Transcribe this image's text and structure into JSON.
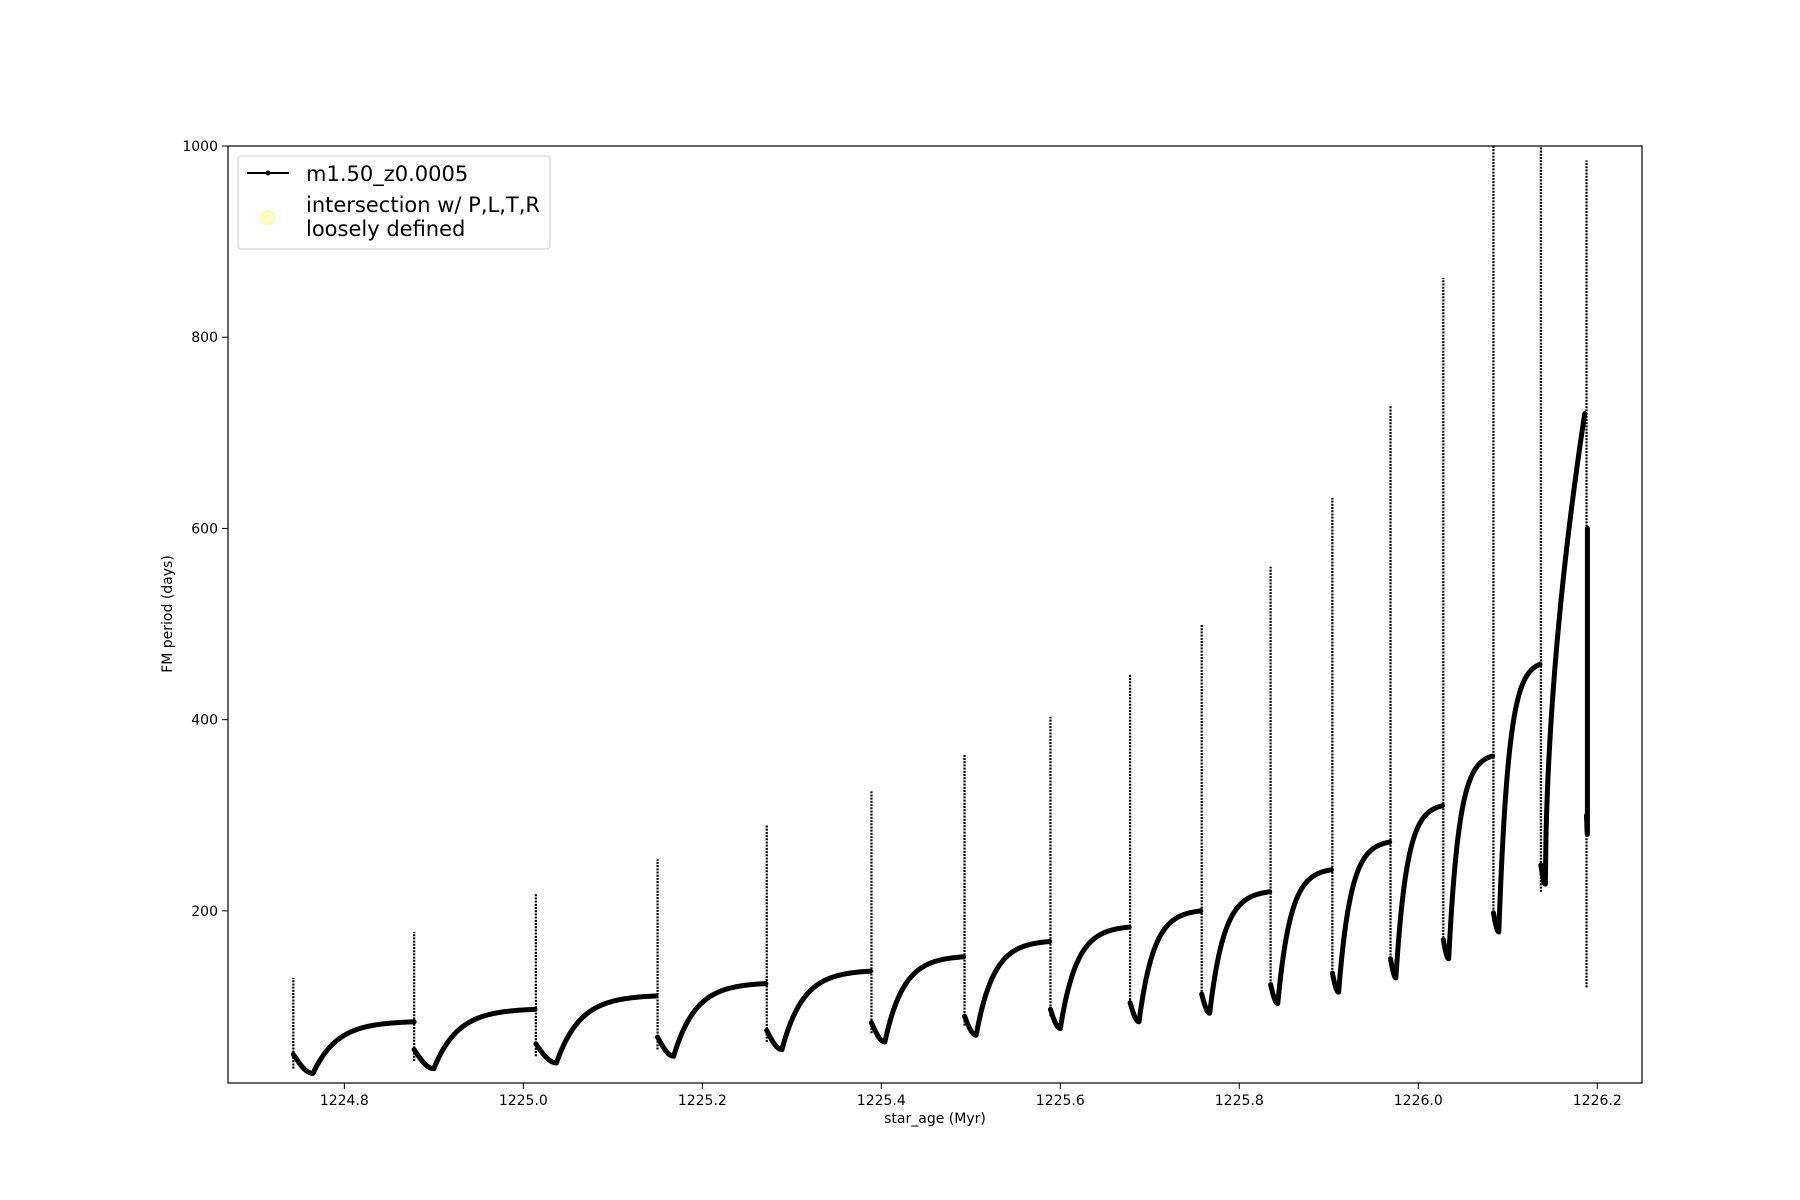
{
  "chart_data": {
    "type": "line",
    "xlabel": "star_age (Myr)",
    "ylabel": "FM period (days)",
    "xlim": [
      1224.67,
      1226.25
    ],
    "ylim": [
      20,
      1000
    ],
    "xticks": [
      1224.8,
      1225.0,
      1225.2,
      1225.4,
      1225.6,
      1225.8,
      1226.0,
      1226.2
    ],
    "xtick_labels": [
      "1224.8",
      "1225.0",
      "1225.2",
      "1225.4",
      "1225.6",
      "1225.8",
      "1226.0",
      "1226.2"
    ],
    "yticks": [
      200,
      400,
      600,
      800,
      1000
    ],
    "ytick_labels": [
      "200",
      "400",
      "600",
      "800",
      "1000"
    ],
    "grid": false,
    "legend_position": "top-left",
    "legend": {
      "line_label": "m1.50_z0.0005",
      "marker_label_line1": "intersection w/ P,L,T,R",
      "marker_label_line2": "loosely defined",
      "marker_color": "#ffffc0"
    },
    "series": [
      {
        "name": "m1.50_z0.0005",
        "color": "#000000",
        "marker": "dot",
        "pulses": [
          {
            "x": 1224.743,
            "spike_top": 130,
            "spike_bottom": 35,
            "min_x": 1224.765,
            "min_y": 30,
            "peak_x": 1224.878,
            "peak_y": 84
          },
          {
            "x": 1224.878,
            "spike_top": 178,
            "spike_bottom": 43,
            "min_x": 1224.9,
            "min_y": 35,
            "peak_x": 1225.013,
            "peak_y": 97
          },
          {
            "x": 1225.014,
            "spike_top": 218,
            "spike_bottom": 48,
            "min_x": 1225.037,
            "min_y": 41,
            "peak_x": 1225.148,
            "peak_y": 111
          },
          {
            "x": 1225.15,
            "spike_top": 254,
            "spike_bottom": 55,
            "min_x": 1225.168,
            "min_y": 48,
            "peak_x": 1225.271,
            "peak_y": 124
          },
          {
            "x": 1225.272,
            "spike_top": 290,
            "spike_bottom": 63,
            "min_x": 1225.289,
            "min_y": 55,
            "peak_x": 1225.388,
            "peak_y": 137
          },
          {
            "x": 1225.389,
            "spike_top": 325,
            "spike_bottom": 72,
            "min_x": 1225.404,
            "min_y": 63,
            "peak_x": 1225.492,
            "peak_y": 152
          },
          {
            "x": 1225.493,
            "spike_top": 364,
            "spike_bottom": 80,
            "min_x": 1225.506,
            "min_y": 70,
            "peak_x": 1225.588,
            "peak_y": 168
          },
          {
            "x": 1225.589,
            "spike_top": 403,
            "spike_bottom": 90,
            "min_x": 1225.6,
            "min_y": 77,
            "peak_x": 1225.677,
            "peak_y": 183
          },
          {
            "x": 1225.678,
            "spike_top": 448,
            "spike_bottom": 100,
            "min_x": 1225.688,
            "min_y": 84,
            "peak_x": 1225.757,
            "peak_y": 200
          },
          {
            "x": 1225.758,
            "spike_top": 500,
            "spike_bottom": 112,
            "min_x": 1225.767,
            "min_y": 93,
            "peak_x": 1225.834,
            "peak_y": 220
          },
          {
            "x": 1225.835,
            "spike_top": 560,
            "spike_bottom": 123,
            "min_x": 1225.843,
            "min_y": 103,
            "peak_x": 1225.903,
            "peak_y": 243
          },
          {
            "x": 1225.904,
            "spike_top": 632,
            "spike_bottom": 135,
            "min_x": 1225.911,
            "min_y": 115,
            "peak_x": 1225.968,
            "peak_y": 272
          },
          {
            "x": 1225.969,
            "spike_top": 728,
            "spike_bottom": 150,
            "min_x": 1225.975,
            "min_y": 130,
            "peak_x": 1226.027,
            "peak_y": 310
          },
          {
            "x": 1226.028,
            "spike_top": 862,
            "spike_bottom": 168,
            "min_x": 1226.034,
            "min_y": 150,
            "peak_x": 1226.083,
            "peak_y": 362
          },
          {
            "x": 1226.084,
            "spike_top": 1000,
            "spike_bottom": 188,
            "min_x": 1226.09,
            "min_y": 178,
            "peak_x": 1226.136,
            "peak_y": 458
          },
          {
            "x": 1226.137,
            "spike_top": 1000,
            "spike_bottom": 220,
            "min_x": 1226.142,
            "min_y": 228,
            "peak_x": 1226.186,
            "peak_y": 720
          },
          {
            "x": 1226.188,
            "spike_top": 985,
            "spike_bottom": 120,
            "min_x": 1226.189,
            "min_y": 280,
            "peak_x": 1226.189,
            "peak_y": 600
          }
        ]
      }
    ]
  }
}
